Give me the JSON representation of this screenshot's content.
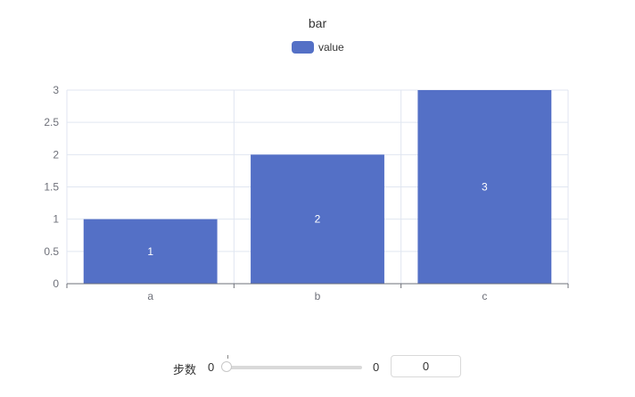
{
  "chart_data": {
    "type": "bar",
    "title": "bar",
    "legend": {
      "entries": [
        "value"
      ],
      "position": "top-center"
    },
    "categories": [
      "a",
      "b",
      "c"
    ],
    "series": [
      {
        "name": "value",
        "values": [
          1,
          2,
          3
        ]
      }
    ],
    "ylim": [
      0,
      3
    ],
    "yticks": [
      "0",
      "0.5",
      "1",
      "1.5",
      "2",
      "2.5",
      "3"
    ],
    "ytick_values": [
      0,
      0.5,
      1,
      1.5,
      2,
      2.5,
      3
    ],
    "grid": true,
    "data_labels": [
      "1",
      "2",
      "3"
    ]
  },
  "colors": {
    "bar": "#5470c6",
    "grid": "#e0e6f1",
    "axis": "#6e7079",
    "label": "#6e7079",
    "title": "#333333"
  },
  "controls": {
    "step_label": "步数",
    "slider_min": "0",
    "slider_max": "0",
    "slider_value": 0,
    "step_input_value": "0"
  }
}
